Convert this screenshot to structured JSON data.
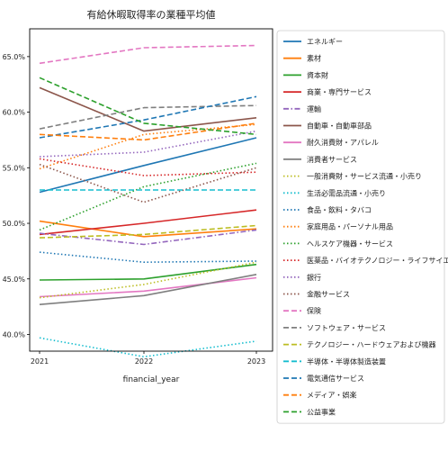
{
  "chart_data": {
    "type": "line",
    "title": "有給休暇取得率の業種平均値",
    "xlabel": "financial_year",
    "ylabel": "",
    "x": [
      "2021",
      "2022",
      "2023"
    ],
    "ylim": [
      38.5,
      67.5
    ],
    "yticks": [
      40.0,
      45.0,
      50.0,
      55.0,
      60.0,
      65.0
    ],
    "ytick_labels": [
      "40.0%",
      "45.0%",
      "50.0%",
      "55.0%",
      "60.0%",
      "65.0%"
    ],
    "grid": false,
    "legend_position": "outside-right",
    "series": [
      {
        "name": "エネルギー",
        "color": "#1f77b4",
        "dash": "solid",
        "values": [
          52.8,
          55.2,
          57.7
        ]
      },
      {
        "name": "素材",
        "color": "#ff7f0e",
        "dash": "solid",
        "values": [
          50.2,
          48.8,
          49.5
        ]
      },
      {
        "name": "資本財",
        "color": "#2ca02c",
        "dash": "solid",
        "values": [
          44.9,
          45.0,
          46.3
        ]
      },
      {
        "name": "商業・専門サービス",
        "color": "#d62728",
        "dash": "solid",
        "values": [
          49.0,
          50.0,
          51.2
        ]
      },
      {
        "name": "運輸",
        "color": "#9467bd",
        "dash": "dashdot",
        "values": [
          49.1,
          48.1,
          49.4
        ]
      },
      {
        "name": "自動車・自動車部品",
        "color": "#8c564b",
        "dash": "solid",
        "values": [
          62.2,
          58.3,
          59.5
        ]
      },
      {
        "name": "耐久消費財・アパレル",
        "color": "#e377c2",
        "dash": "solid",
        "values": [
          43.4,
          43.9,
          45.1
        ]
      },
      {
        "name": "消費者サービス",
        "color": "#7f7f7f",
        "dash": "solid",
        "values": [
          42.7,
          43.5,
          45.4
        ]
      },
      {
        "name": "一般消費財・サービス流通・小売り",
        "color": "#bcbd22",
        "dash": "dotted",
        "values": [
          43.3,
          44.5,
          46.5
        ]
      },
      {
        "name": "生活必需品流通・小売り",
        "color": "#17becf",
        "dash": "dotted",
        "values": [
          39.7,
          38.0,
          39.4
        ]
      },
      {
        "name": "食品・飲料・タバコ",
        "color": "#1f77b4",
        "dash": "dotted",
        "values": [
          47.4,
          46.5,
          46.6
        ]
      },
      {
        "name": "家庭用品・パーソナル用品",
        "color": "#ff7f0e",
        "dash": "dotted",
        "values": [
          54.9,
          58.0,
          58.9
        ]
      },
      {
        "name": "ヘルスケア機器・サービス",
        "color": "#2ca02c",
        "dash": "dotted",
        "values": [
          49.4,
          53.3,
          55.4
        ]
      },
      {
        "name": "医薬品・バイオテクノロジー・ライフサイエンス",
        "color": "#d62728",
        "dash": "dotted",
        "values": [
          55.8,
          54.3,
          54.6
        ]
      },
      {
        "name": "銀行",
        "color": "#9467bd",
        "dash": "dotted",
        "values": [
          56.0,
          56.4,
          58.3
        ]
      },
      {
        "name": "金融サービス",
        "color": "#8c564b",
        "dash": "dotted",
        "values": [
          55.3,
          51.9,
          55.0
        ]
      },
      {
        "name": "保険",
        "color": "#e377c2",
        "dash": "dashed",
        "values": [
          64.4,
          65.8,
          66.0
        ]
      },
      {
        "name": "ソフトウェア・サービス",
        "color": "#7f7f7f",
        "dash": "dashed",
        "values": [
          58.5,
          60.4,
          60.6
        ]
      },
      {
        "name": "テクノロジー・ハードウェアおよび機器",
        "color": "#bcbd22",
        "dash": "dashed",
        "values": [
          48.7,
          49.0,
          49.8
        ]
      },
      {
        "name": "半導体・半導体製造装置",
        "color": "#17becf",
        "dash": "dashed",
        "values": [
          53.0,
          53.0,
          53.0
        ]
      },
      {
        "name": "電気通信サービス",
        "color": "#1f77b4",
        "dash": "dashed",
        "values": [
          57.7,
          59.3,
          61.4
        ]
      },
      {
        "name": "メディア・娯楽",
        "color": "#ff7f0e",
        "dash": "dashed",
        "values": [
          58.0,
          57.5,
          59.0
        ]
      },
      {
        "name": "公益事業",
        "color": "#2ca02c",
        "dash": "dashed",
        "values": [
          63.1,
          59.0,
          58.0
        ]
      }
    ]
  }
}
